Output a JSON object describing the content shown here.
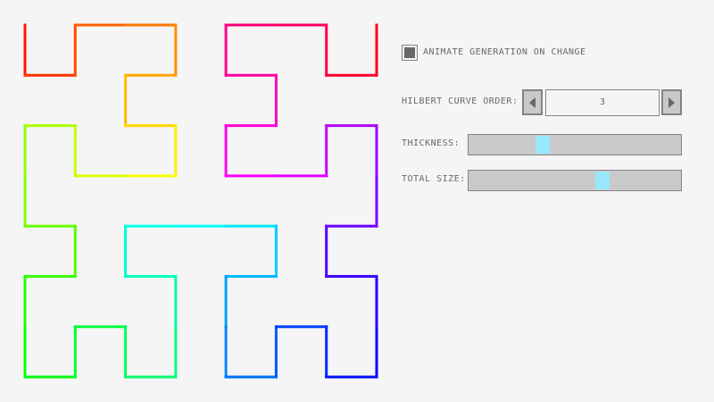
{
  "curve": {
    "order": 3,
    "color_mode": "rainbow-hue-gradient"
  },
  "controls": {
    "animate_checkbox": {
      "label": "ANIMATE GENERATION ON CHANGE",
      "checked": true
    },
    "order_spinner": {
      "label": "HILBERT CURVE ORDER:",
      "value": "3",
      "left_icon": "triangle-left-icon",
      "right_icon": "triangle-right-icon"
    },
    "thickness_slider": {
      "label": "THICKNESS:",
      "fraction": 0.34
    },
    "size_slider": {
      "label": "TOTAL SIZE:",
      "fraction": 0.64
    }
  },
  "colors": {
    "thumb": "#97e8ff",
    "track": "#c9c9c9",
    "border": "#838383",
    "text": "#686868",
    "background": "#f5f5f5"
  }
}
